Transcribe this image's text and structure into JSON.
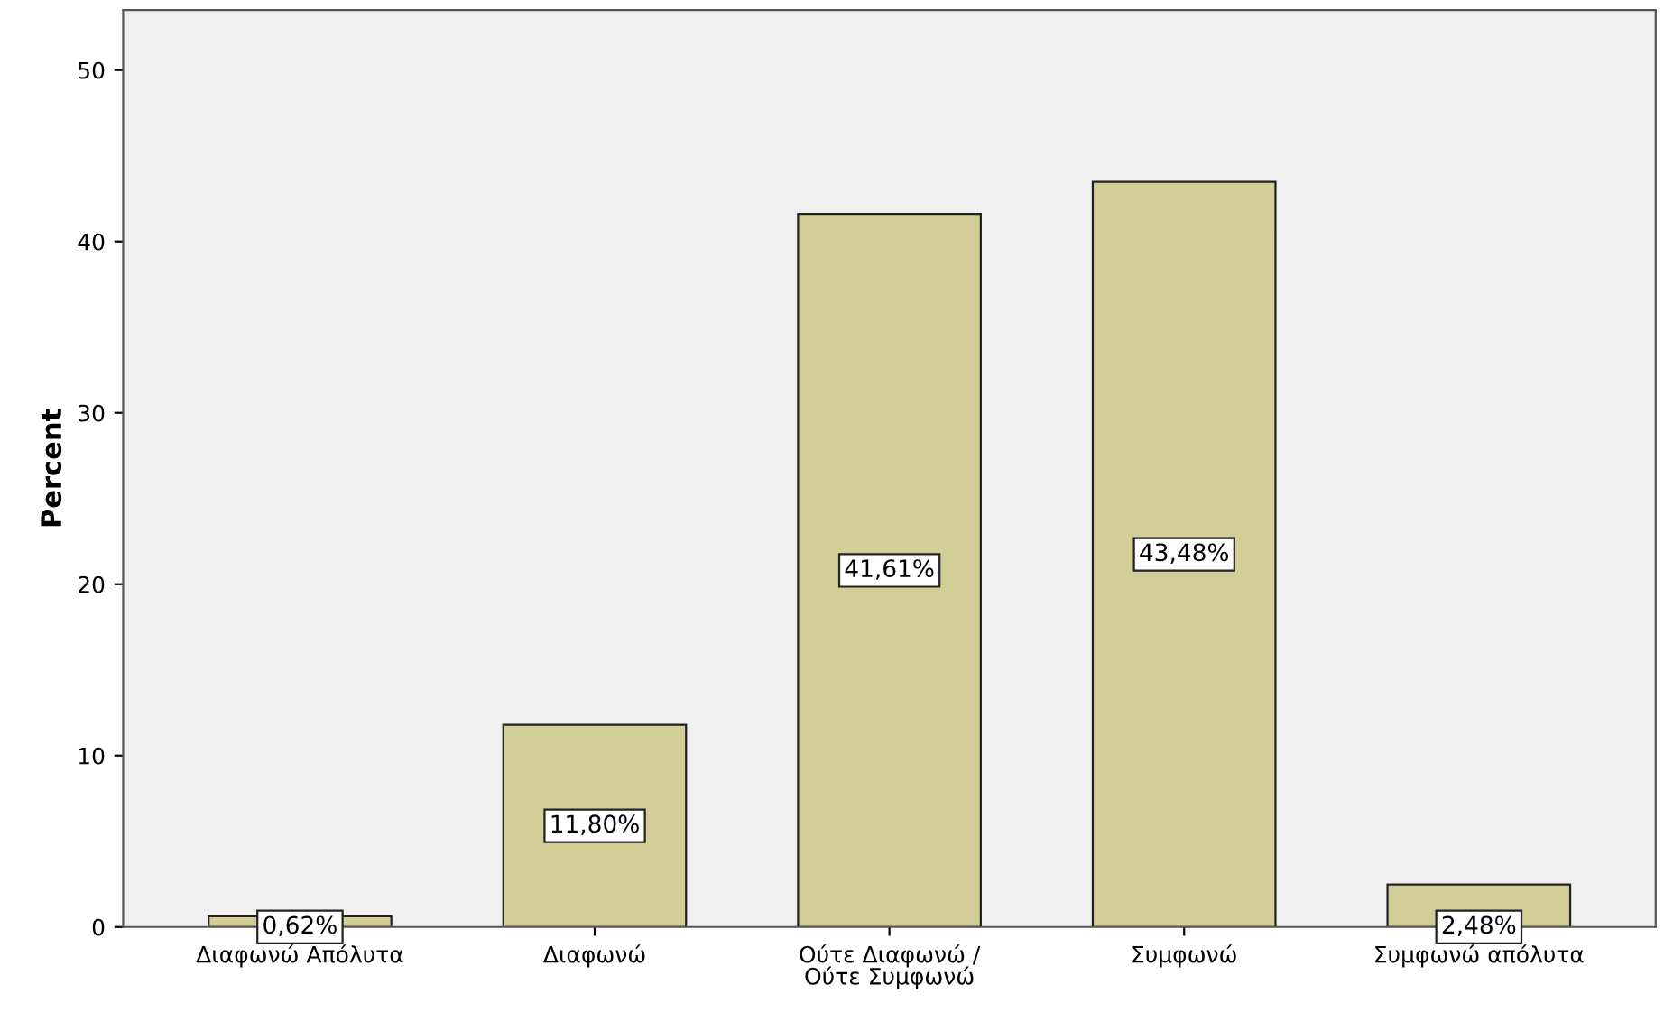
{
  "chart_data": {
    "type": "bar",
    "ylabel": "Percent",
    "categories": [
      "Διαφωνώ Απόλυτα",
      "Διαφωνώ",
      "Ούτε Διαφωνώ /\nΟύτε Συμφωνώ",
      "Συμφωνώ",
      "Συμφωνώ απόλυτα"
    ],
    "values": [
      0.62,
      11.8,
      41.61,
      43.48,
      2.48
    ],
    "value_labels": [
      "0,62%",
      "11,80%",
      "41,61%",
      "43,48%",
      "2,48%"
    ],
    "color": "#d3ce97",
    "ylim": [
      0,
      53.5
    ],
    "yticks": [
      0,
      10,
      20,
      30,
      40,
      50
    ],
    "grid": false,
    "legend": false
  }
}
